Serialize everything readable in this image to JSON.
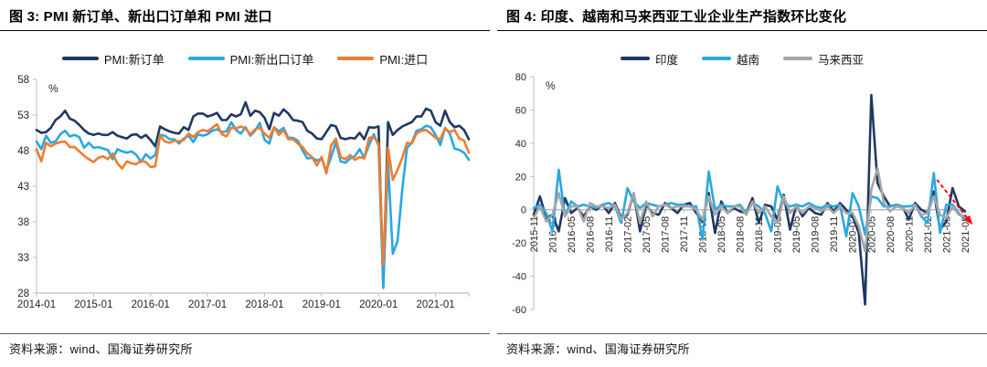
{
  "page": {
    "background": "#FFFFFF"
  },
  "figures": [
    {
      "title": "图 3: PMI 新订单、新出口订单和 PMI 进口",
      "source": "资料来源：wind、国海证券研究所",
      "chart_data": {
        "type": "line",
        "title": "PMI 新订单、新出口订单和 PMI 进口",
        "y_unit_label": "%",
        "ylim": [
          28,
          58
        ],
        "y_ticks": [
          58,
          53,
          48,
          43,
          38,
          33,
          28
        ],
        "x_start": "2014-01",
        "x_end": "2021-08",
        "x_interval": "monthly",
        "x_tick_indices": [
          0,
          12,
          24,
          36,
          48,
          60,
          72,
          84
        ],
        "x_tick_labels": [
          "2014-01",
          "2015-01",
          "2016-01",
          "2017-01",
          "2018-01",
          "2019-01",
          "2020-01",
          "2021-01"
        ],
        "grid": false,
        "legend_position": "top-center",
        "series": [
          {
            "name": "PMI:新订单",
            "color": "#1F3864",
            "values": [
              50.9,
              50.5,
              50.6,
              51.2,
              52.3,
              52.8,
              53.6,
              52.5,
              52.2,
              51.6,
              50.9,
              50.4,
              50.2,
              50.4,
              50.2,
              50.2,
              50.6,
              50.1,
              49.9,
              49.7,
              50.2,
              50.3,
              49.8,
              50.2,
              49.5,
              48.6,
              51.4,
              51.0,
              50.7,
              50.5,
              50.4,
              51.3,
              50.9,
              52.8,
              53.2,
              53.2,
              52.8,
              53.0,
              53.3,
              52.3,
              52.3,
              53.1,
              52.8,
              53.1,
              54.8,
              52.9,
              53.6,
              53.4,
              52.6,
              51.0,
              53.3,
              52.9,
              53.8,
              53.2,
              52.3,
              52.2,
              52.0,
              50.8,
              50.4,
              49.7,
              49.6,
              50.6,
              51.6,
              51.4,
              49.8,
              49.6,
              49.8,
              49.7,
              50.5,
              49.6,
              51.3,
              51.2,
              51.4,
              29.3,
              52.0,
              50.2,
              50.9,
              51.4,
              51.7,
              52.0,
              52.8,
              52.8,
              53.9,
              53.6,
              52.0,
              51.5,
              53.6,
              52.0,
              51.3,
              51.5,
              50.9,
              49.6
            ]
          },
          {
            "name": "PMI:新出口订单",
            "color": "#29A8E2",
            "values": [
              49.3,
              48.2,
              50.1,
              49.1,
              49.3,
              50.3,
              50.8,
              50.0,
              50.2,
              49.9,
              48.4,
              49.1,
              48.4,
              48.5,
              48.3,
              48.1,
              46.8,
              48.2,
              47.9,
              47.7,
              47.9,
              47.4,
              46.4,
              47.5,
              46.9,
              47.4,
              50.2,
              50.1,
              49.6,
              49.6,
              49.0,
              49.7,
              50.1,
              49.2,
              50.3,
              50.1,
              50.3,
              50.8,
              51.0,
              50.6,
              50.7,
              52.0,
              50.9,
              50.4,
              51.3,
              50.1,
              50.8,
              51.9,
              49.5,
              49.0,
              51.3,
              50.7,
              51.2,
              49.8,
              49.8,
              49.4,
              48.0,
              46.9,
              47.0,
              46.6,
              46.9,
              45.2,
              47.1,
              49.2,
              46.5,
              46.3,
              46.9,
              47.2,
              48.2,
              47.0,
              48.8,
              50.3,
              48.7,
              28.7,
              46.4,
              33.5,
              35.3,
              42.6,
              48.4,
              49.1,
              50.8,
              51.0,
              51.5,
              51.3,
              50.2,
              48.8,
              51.2,
              50.4,
              48.3,
              48.1,
              47.7,
              46.7
            ]
          },
          {
            "name": "PMI:进口",
            "color": "#ED7D31",
            "values": [
              48.2,
              46.5,
              49.1,
              48.6,
              49.0,
              49.2,
              49.3,
              48.5,
              48.5,
              47.9,
              47.3,
              46.8,
              46.4,
              47.0,
              47.2,
              46.8,
              47.6,
              46.2,
              45.5,
              46.5,
              46.2,
              46.1,
              46.6,
              46.4,
              45.7,
              45.8,
              50.1,
              49.3,
              49.1,
              49.4,
              49.3,
              49.5,
              50.4,
              49.9,
              50.6,
              50.9,
              50.7,
              51.2,
              51.7,
              50.3,
              50.0,
              51.2,
              51.1,
              51.4,
              51.1,
              50.3,
              51.0,
              51.2,
              50.4,
              49.8,
              51.3,
              50.2,
              50.9,
              49.6,
              49.6,
              49.0,
              48.5,
              47.6,
              47.1,
              45.9,
              47.1,
              44.8,
              48.7,
              49.7,
              47.1,
              46.8,
              47.4,
              46.7,
              47.1,
              46.9,
              49.8,
              49.9,
              49.0,
              31.9,
              48.4,
              43.9,
              45.3,
              47.0,
              49.1,
              49.0,
              50.4,
              50.8,
              50.9,
              50.4,
              49.8,
              49.6,
              51.1,
              50.6,
              50.9,
              49.7,
              49.4,
              47.7
            ]
          }
        ]
      }
    },
    {
      "title": "图 4: 印度、越南和马来西亚工业企业生产指数环比变化",
      "source": "资料来源：wind、国海证券研究所",
      "chart_data": {
        "type": "line",
        "title": "印度、越南和马来西亚工业企业生产指数环比变化",
        "y_unit_label": "%",
        "ylim": [
          -60,
          80
        ],
        "y_ticks": [
          80,
          60,
          40,
          20,
          0,
          -20,
          -40,
          -60
        ],
        "x_start": "2015-11",
        "x_end": "2021-08",
        "x_interval": "monthly",
        "x_tick_indices": [
          0,
          3,
          6,
          9,
          12,
          15,
          18,
          21,
          24,
          27,
          30,
          33,
          36,
          39,
          42,
          45,
          48,
          51,
          54,
          57,
          60,
          63,
          66,
          69
        ],
        "x_tick_labels": [
          "2015-11",
          "2016-02",
          "2016-05",
          "2016-08",
          "2016-11",
          "2017-02",
          "2017-05",
          "2017-08",
          "2017-11",
          "2018-02",
          "2018-05",
          "2018-08",
          "2018-11",
          "2019-02",
          "2019-05",
          "2019-08",
          "2019-11",
          "2020-02",
          "2020-05",
          "2020-08",
          "2020-11",
          "2021-02",
          "2021-05",
          "2021-08"
        ],
        "x_tick_rotation": -90,
        "category_axis_at_zero": true,
        "grid": false,
        "legend_position": "top-center",
        "series": [
          {
            "name": "印度",
            "color": "#1F3864",
            "values": [
              -3,
              8,
              -5,
              -3,
              -13,
              7,
              -2,
              1,
              -4,
              2,
              0,
              3,
              -2,
              4,
              -5,
              -3,
              10,
              -13,
              3,
              -2,
              -3,
              4,
              1,
              -2,
              3,
              4,
              -2,
              -7,
              10,
              -14,
              5,
              -2,
              1,
              -1,
              -2,
              7,
              -8,
              3,
              2,
              -6,
              9,
              -12,
              3,
              -4,
              1,
              -2,
              -3,
              4,
              -1,
              4,
              0,
              -4,
              -14,
              -57,
              69,
              16,
              8,
              2,
              3,
              2,
              -6,
              4,
              0,
              -2,
              11,
              -12,
              -7,
              13,
              2,
              -1
            ]
          },
          {
            "name": "越南",
            "color": "#29A8E2",
            "values": [
              1,
              3,
              -2,
              -13,
              24,
              -4,
              5,
              2,
              3,
              2,
              1,
              3,
              4,
              2,
              -8,
              13,
              5,
              1,
              4,
              3,
              2,
              3,
              4,
              3,
              3,
              2,
              2,
              -18,
              23,
              0,
              3,
              2,
              2,
              3,
              -2,
              4,
              2,
              -2,
              -13,
              14,
              4,
              2,
              3,
              2,
              4,
              2,
              1,
              3,
              2,
              3,
              -16,
              10,
              2,
              -15,
              8,
              7,
              2,
              2,
              3,
              2,
              2,
              3,
              -4,
              -8,
              22,
              -14,
              3,
              3,
              -2,
              -6
            ]
          },
          {
            "name": "马来西亚",
            "color": "#A6A6A6",
            "values": [
              -5,
              2,
              -7,
              -3,
              10,
              -4,
              2,
              2,
              -7,
              4,
              2,
              2,
              1,
              3,
              -6,
              -2,
              10,
              -8,
              5,
              -4,
              2,
              3,
              1,
              2,
              2,
              2,
              0,
              -6,
              8,
              -3,
              2,
              -2,
              2,
              2,
              -3,
              5,
              -2,
              2,
              -4,
              -8,
              8,
              -2,
              2,
              -2,
              2,
              1,
              -1,
              2,
              -2,
              2,
              -2,
              -2,
              -10,
              -25,
              12,
              25,
              4,
              -1,
              2,
              1,
              -2,
              3,
              -3,
              -2,
              8,
              -3,
              -5,
              2,
              -3,
              -4
            ]
          }
        ],
        "annotation": {
          "shape": "dashed-arrow",
          "color": "#FF0000",
          "from": {
            "index": 64.5,
            "value": 18
          },
          "to": {
            "index": 70.2,
            "value": -9
          }
        }
      }
    }
  ]
}
